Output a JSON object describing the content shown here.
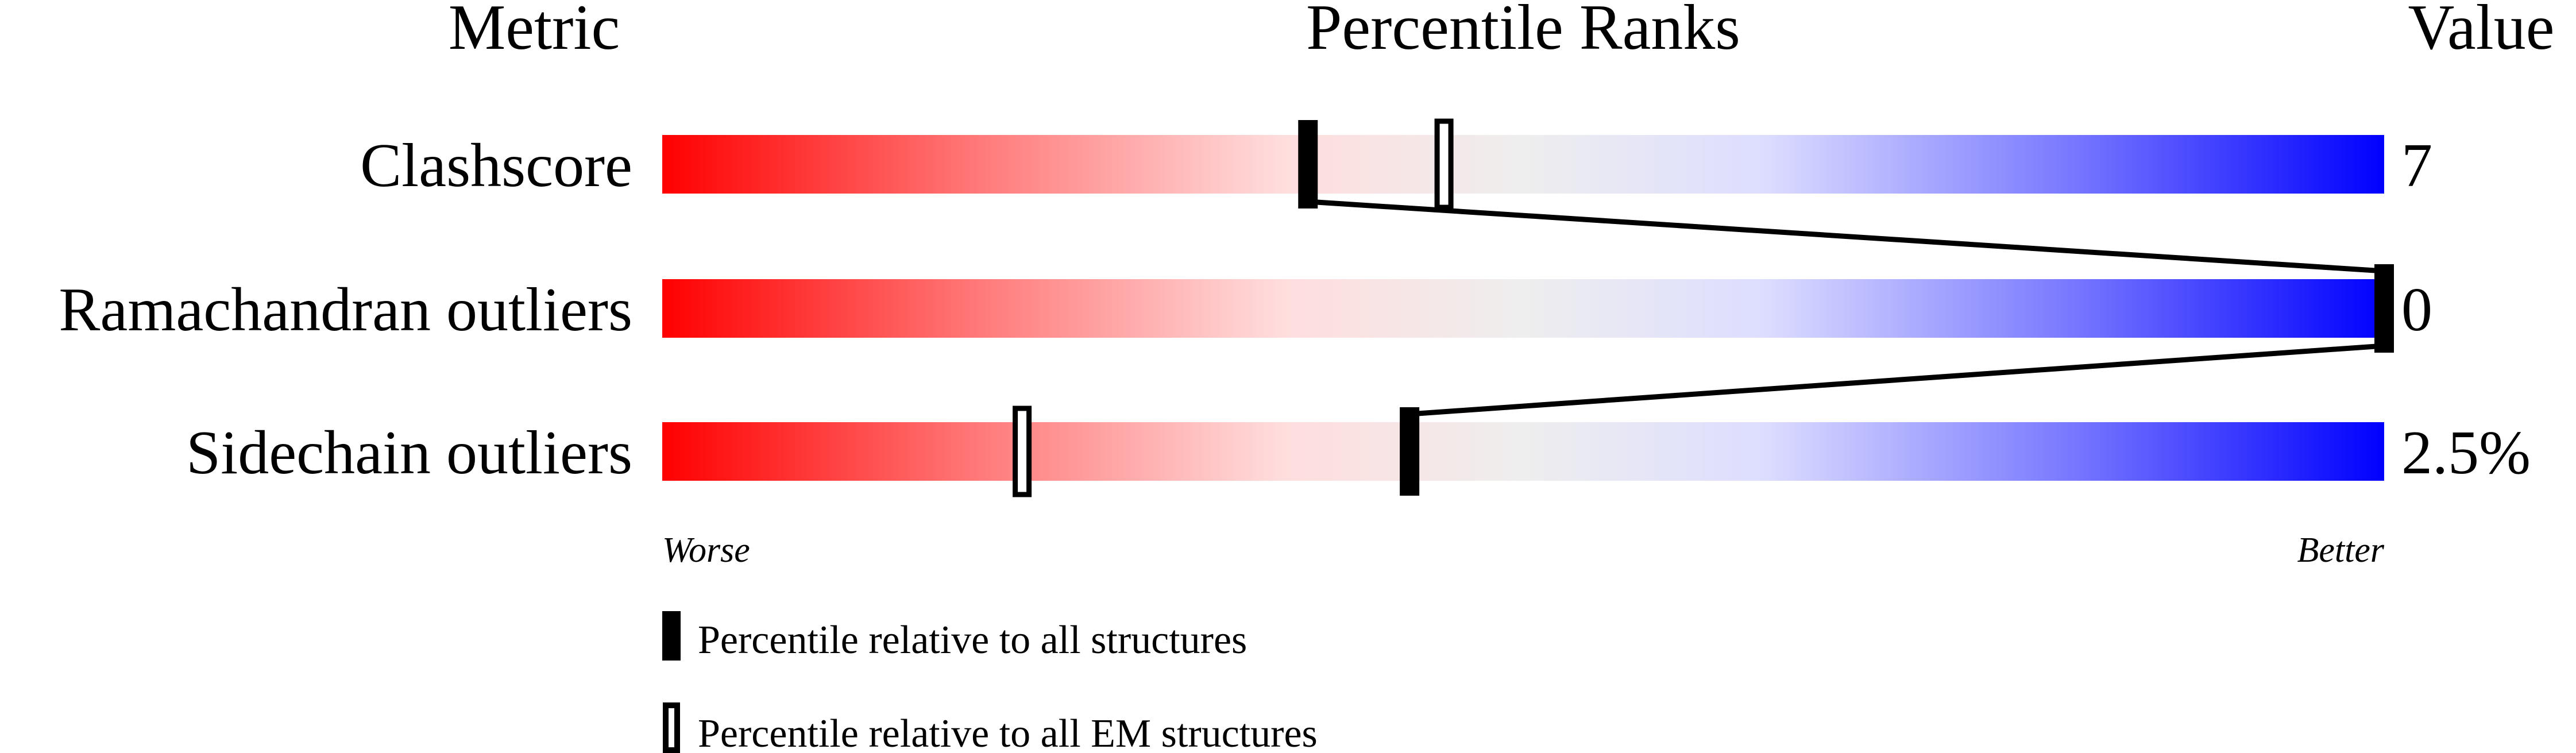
{
  "chart_data": {
    "type": "percentile-slider",
    "headers": {
      "metric": "Metric",
      "ranks": "Percentile Ranks",
      "value": "Value"
    },
    "xlim": [
      0,
      100
    ],
    "axis_labels": {
      "left": "Worse",
      "right": "Better"
    },
    "gradient_colors": [
      "#ff0000",
      "#ffdddd",
      "#eeeeee",
      "#ddddff",
      "#0000ff"
    ],
    "metrics": [
      {
        "name": "Clashscore",
        "value": "7",
        "percentile_all": 37.5,
        "percentile_em": 45.4
      },
      {
        "name": "Ramachandran outliers",
        "value": "0",
        "percentile_all": 100,
        "percentile_em": 100
      },
      {
        "name": "Sidechain outliers",
        "value": "2.5%",
        "percentile_all": 43.4,
        "percentile_em": 20.9
      }
    ],
    "legend": [
      {
        "marker": "filled",
        "label": "Percentile relative to all structures"
      },
      {
        "marker": "open",
        "label": "Percentile relative to all EM structures"
      }
    ]
  }
}
